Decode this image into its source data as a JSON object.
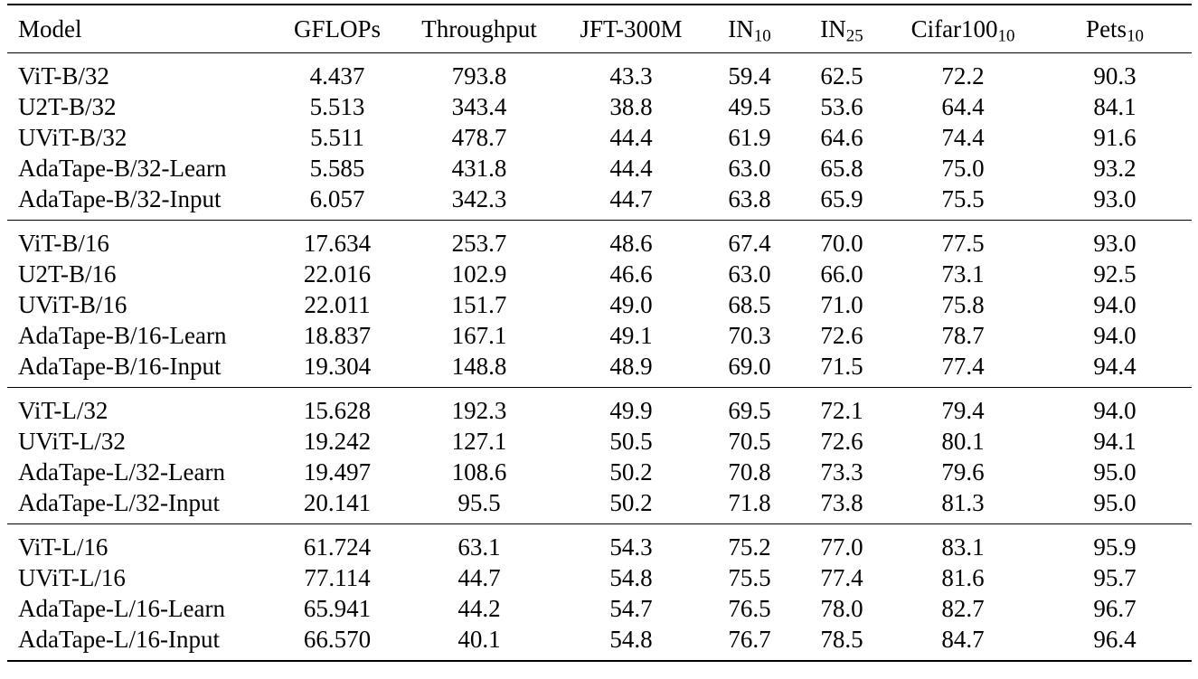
{
  "table": {
    "columns": [
      {
        "key": "model",
        "text": "Model",
        "sub": ""
      },
      {
        "key": "gflops",
        "text": "GFLOPs",
        "sub": ""
      },
      {
        "key": "throughput",
        "text": "Throughput",
        "sub": ""
      },
      {
        "key": "jft",
        "text": "JFT-300M",
        "sub": ""
      },
      {
        "key": "in10",
        "text": "IN",
        "sub": "10"
      },
      {
        "key": "in25",
        "text": "IN",
        "sub": "25"
      },
      {
        "key": "cifar",
        "text": "Cifar100",
        "sub": "10"
      },
      {
        "key": "pets",
        "text": "Pets",
        "sub": "10"
      }
    ],
    "groups": [
      {
        "rows": [
          {
            "cells": [
              "ViT-B/32",
              "4.437",
              "793.8",
              "43.3",
              "59.4",
              "62.5",
              "72.2",
              "90.3"
            ],
            "bold": []
          },
          {
            "cells": [
              "U2T-B/32",
              "5.513",
              "343.4",
              "38.8",
              "49.5",
              "53.6",
              "64.4",
              "84.1"
            ],
            "bold": []
          },
          {
            "cells": [
              "UViT-B/32",
              "5.511",
              "478.7",
              "44.4",
              "61.9",
              "64.6",
              "74.4",
              "91.6"
            ],
            "bold": []
          },
          {
            "cells": [
              "AdaTape-B/32-Learn",
              "5.585",
              "431.8",
              "44.4",
              "63.0",
              "65.8",
              "75.0",
              "93.2"
            ],
            "bold": [
              7
            ]
          },
          {
            "cells": [
              "AdaTape-B/32-Input",
              "6.057",
              "342.3",
              "44.7",
              "63.8",
              "65.9",
              "75.5",
              "93.0"
            ],
            "bold": [
              3,
              4,
              5,
              6
            ]
          }
        ]
      },
      {
        "rows": [
          {
            "cells": [
              "ViT-B/16",
              "17.634",
              "253.7",
              "48.6",
              "67.4",
              "70.0",
              "77.5",
              "93.0"
            ],
            "bold": []
          },
          {
            "cells": [
              "U2T-B/16",
              "22.016",
              "102.9",
              "46.6",
              "63.0",
              "66.0",
              "73.1",
              "92.5"
            ],
            "bold": []
          },
          {
            "cells": [
              "UViT-B/16",
              "22.011",
              "151.7",
              "49.0",
              "68.5",
              "71.0",
              "75.8",
              "94.0"
            ],
            "bold": []
          },
          {
            "cells": [
              "AdaTape-B/16-Learn",
              "18.837",
              "167.1",
              "49.1",
              "70.3",
              "72.6",
              "78.7",
              "94.0"
            ],
            "bold": [
              3,
              4,
              5,
              6
            ]
          },
          {
            "cells": [
              "AdaTape-B/16-Input",
              "19.304",
              "148.8",
              "48.9",
              "69.0",
              "71.5",
              "77.4",
              "94.4"
            ],
            "bold": [
              7
            ]
          }
        ]
      },
      {
        "rows": [
          {
            "cells": [
              "ViT-L/32",
              "15.628",
              "192.3",
              "49.9",
              "69.5",
              "72.1",
              "79.4",
              "94.0"
            ],
            "bold": []
          },
          {
            "cells": [
              "UViT-L/32",
              "19.242",
              "127.1",
              "50.5",
              "70.5",
              "72.6",
              "80.1",
              "94.1"
            ],
            "bold": [
              3
            ]
          },
          {
            "cells": [
              "AdaTape-L/32-Learn",
              "19.497",
              "108.6",
              "50.2",
              "70.8",
              "73.3",
              "79.6",
              "95.0"
            ],
            "bold": [
              7
            ]
          },
          {
            "cells": [
              "AdaTape-L/32-Input",
              "20.141",
              "95.5",
              "50.2",
              "71.8",
              "73.8",
              "81.3",
              "95.0"
            ],
            "bold": [
              4,
              5,
              6,
              7
            ]
          }
        ]
      },
      {
        "rows": [
          {
            "cells": [
              "ViT-L/16",
              "61.724",
              "63.1",
              "54.3",
              "75.2",
              "77.0",
              "83.1",
              "95.9"
            ],
            "bold": []
          },
          {
            "cells": [
              "UViT-L/16",
              "77.114",
              "44.7",
              "54.8",
              "75.5",
              "77.4",
              "81.6",
              "95.7"
            ],
            "bold": [
              3
            ]
          },
          {
            "cells": [
              "AdaTape-L/16-Learn",
              "65.941",
              "44.2",
              "54.7",
              "76.5",
              "78.0",
              "82.7",
              "96.7"
            ],
            "bold": [
              7
            ]
          },
          {
            "cells": [
              "AdaTape-L/16-Input",
              "66.570",
              "40.1",
              "54.8",
              "76.7",
              "78.5",
              "84.7",
              "96.4"
            ],
            "bold": [
              3,
              4,
              5,
              6
            ]
          }
        ]
      }
    ]
  }
}
